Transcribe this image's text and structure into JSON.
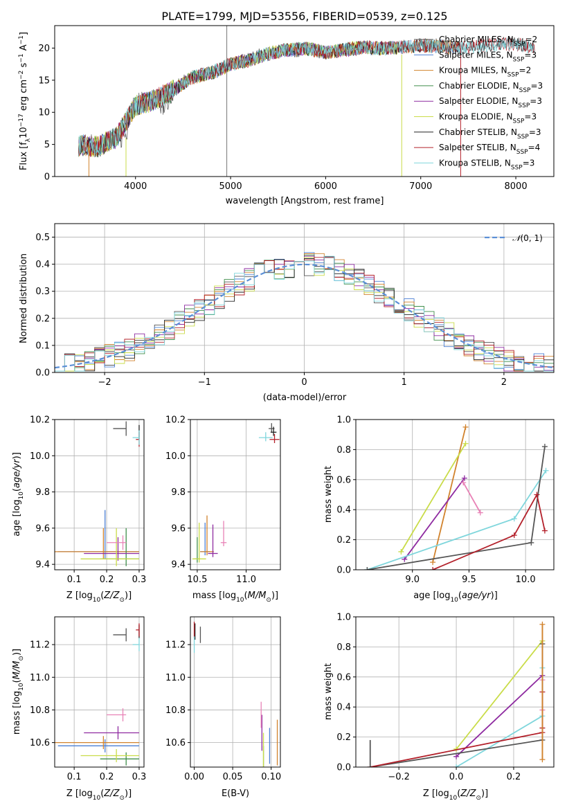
{
  "chart_data": [
    {
      "panel": "spectrum",
      "type": "line",
      "title": "PLATE=1799, MJD=53556, FIBERID=0539, z=0.125",
      "xlabel": "wavelength [Angstrom, rest frame]",
      "ylabel": "Flux [fλ10⁻¹⁷ erg cm⁻² s⁻¹ A⁻¹]",
      "xlim": [
        3150,
        8400
      ],
      "ylim": [
        0,
        23.5
      ],
      "xticks": [
        4000,
        5000,
        6000,
        7000,
        8000
      ],
      "yticks": [
        0,
        5,
        10,
        15,
        20
      ],
      "legend_position": "top-right",
      "series": [
        {
          "name": "Chabrier MILES, N_SSP=2",
          "legend": "Chabrier MILES, N",
          "sub": "SSP",
          "suffix": "=2",
          "color": "#555555",
          "x": [
            3400,
            3500,
            3600,
            3700,
            3800,
            3900,
            4000,
            4100,
            4200,
            4300,
            4400,
            4500,
            4600,
            4700,
            4800,
            4900,
            5000,
            5100,
            5200,
            5300,
            5400,
            5500,
            5600,
            5700,
            5800,
            5900,
            6000,
            6200,
            6400,
            6600,
            6800,
            7000,
            7200,
            7400
          ],
          "y": [
            4.8,
            5.2,
            4.5,
            5.5,
            6.2,
            6.0,
            11.2,
            11.8,
            12.0,
            11.0,
            13.5,
            14.8,
            15.5,
            16.0,
            16.2,
            16.8,
            17.5,
            18.0,
            18.2,
            19.0,
            19.2,
            19.5,
            19.8,
            19.5,
            20.0,
            19.6,
            19.3,
            19.8,
            20.2,
            20.0,
            20.2,
            20.5,
            20.4,
            20.0
          ]
        },
        {
          "name": "Salpeter MILES, N_SSP=3",
          "legend": "Salpeter MILES, N",
          "sub": "SSP",
          "suffix": "=3",
          "color": "#4a7fd4",
          "x": [
            3400,
            3600,
            3800,
            4000,
            4200,
            4400,
            4600,
            4800,
            5000,
            5200,
            5400,
            5600,
            5800,
            6000,
            6200,
            6400,
            6600,
            6800,
            7000,
            7200,
            7400
          ],
          "y": [
            4.9,
            4.6,
            6.1,
            11.0,
            11.9,
            13.4,
            15.4,
            16.1,
            17.4,
            18.1,
            19.1,
            19.7,
            19.9,
            19.3,
            19.7,
            20.1,
            19.9,
            20.1,
            20.4,
            20.3,
            20.0
          ]
        },
        {
          "name": "Kroupa MILES, N_SSP=2",
          "legend": "Kroupa MILES, N",
          "sub": "SSP",
          "suffix": "=2",
          "color": "#d1822c",
          "x": [
            3400,
            3600,
            3800,
            4000,
            4200,
            4400,
            4600,
            4800,
            5000,
            5200,
            5400,
            5600,
            5800,
            6000,
            6200,
            6400,
            6600,
            6800,
            7000,
            7200,
            7400
          ],
          "y": [
            4.8,
            4.6,
            6.0,
            11.0,
            11.8,
            13.5,
            15.4,
            16.1,
            17.5,
            18.1,
            19.1,
            19.7,
            19.9,
            19.3,
            19.7,
            20.1,
            19.9,
            20.1,
            20.4,
            20.3,
            20.0
          ]
        },
        {
          "name": "Chabrier ELODIE, N_SSP=3",
          "legend": "Chabrier ELODIE, N",
          "sub": "SSP",
          "suffix": "=3",
          "color": "#3f8e4a",
          "x": [
            3400,
            3600,
            3800,
            4000,
            4200,
            4400,
            4600,
            4800,
            5000,
            5200,
            5400,
            5600,
            5800,
            6000,
            6200,
            6400,
            6600,
            6800
          ],
          "y": [
            4.9,
            4.6,
            6.1,
            11.1,
            11.9,
            13.4,
            15.5,
            16.2,
            17.5,
            18.1,
            19.1,
            19.8,
            19.9,
            19.3,
            19.8,
            20.1,
            20.0,
            20.1
          ]
        },
        {
          "name": "Salpeter ELODIE, N_SSP=3",
          "legend": "Salpeter ELODIE, N",
          "sub": "SSP",
          "suffix": "=3",
          "color": "#8e2aa0",
          "x": [
            3400,
            3600,
            3800,
            4000,
            4200,
            4400,
            4600,
            4800,
            5000,
            5200,
            5400,
            5600,
            5800,
            6000,
            6200,
            6400,
            6600,
            6800
          ],
          "y": [
            4.9,
            4.6,
            6.1,
            11.0,
            11.9,
            13.5,
            15.4,
            16.1,
            17.5,
            18.2,
            19.1,
            19.7,
            19.9,
            19.4,
            19.7,
            20.1,
            20.0,
            20.1
          ]
        },
        {
          "name": "Kroupa ELODIE, N_SSP=3",
          "legend": "Kroupa ELODIE, N",
          "sub": "SSP",
          "suffix": "=3",
          "color": "#c9dc48",
          "x": [
            3400,
            3600,
            3800,
            4000,
            4200,
            4400,
            4600,
            4800,
            5000,
            5200,
            5400,
            5600,
            5800,
            6000,
            6200,
            6400,
            6600,
            6800
          ],
          "y": [
            4.8,
            4.7,
            6.2,
            11.1,
            11.8,
            13.5,
            15.5,
            16.1,
            17.4,
            18.1,
            19.2,
            19.7,
            19.9,
            19.3,
            19.8,
            20.2,
            19.9,
            20.2
          ]
        },
        {
          "name": "Chabrier STELIB, N_SSP=3",
          "legend": "Chabrier STELIB, N",
          "sub": "SSP",
          "suffix": "=3",
          "color": "#222222",
          "x": [
            3400,
            3600,
            3800,
            4000,
            4200,
            4400,
            4600,
            4800,
            5000,
            5200,
            5400,
            5600,
            5800,
            6000,
            6200,
            6400,
            6600,
            6800,
            7000,
            7200,
            7400,
            7600,
            7800,
            8000,
            8200
          ],
          "y": [
            4.9,
            4.6,
            6.1,
            11.1,
            11.9,
            13.4,
            15.4,
            16.1,
            17.5,
            18.1,
            19.1,
            19.8,
            19.9,
            19.3,
            19.8,
            20.1,
            20.0,
            20.1,
            20.4,
            20.3,
            20.0,
            20.3,
            20.6,
            20.6,
            20.1
          ]
        },
        {
          "name": "Salpeter STELIB, N_SSP=4",
          "legend": "Salpeter STELIB, N",
          "sub": "SSP",
          "suffix": "=4",
          "color": "#b3202a",
          "x": [
            3400,
            3600,
            3800,
            4000,
            4200,
            4400,
            4600,
            4800,
            5000,
            5200,
            5400,
            5600,
            5800,
            6000,
            6200,
            6400,
            6600,
            6800,
            7000,
            7200,
            7400,
            7600,
            7800,
            8000,
            8200
          ],
          "y": [
            4.9,
            4.6,
            6.1,
            11.0,
            11.9,
            13.5,
            15.5,
            16.1,
            17.5,
            18.1,
            19.1,
            19.7,
            19.9,
            19.3,
            19.7,
            20.1,
            20.0,
            20.1,
            20.4,
            20.3,
            20.0,
            20.3,
            20.6,
            20.6,
            20.1
          ]
        },
        {
          "name": "Kroupa STELIB, N_SSP=3",
          "legend": "Kroupa STELIB, N",
          "sub": "SSP",
          "suffix": "=3",
          "color": "#7fd6dc",
          "x": [
            3400,
            3600,
            3800,
            4000,
            4200,
            4400,
            4600,
            4800,
            5000,
            5200,
            5400,
            5600,
            5800,
            6000,
            6200,
            6400,
            6600,
            6800,
            7000,
            7200,
            7400,
            7600,
            7800,
            8000,
            8200
          ],
          "y": [
            4.8,
            4.7,
            6.2,
            11.1,
            11.9,
            13.4,
            15.4,
            16.2,
            17.5,
            18.1,
            19.2,
            19.8,
            19.9,
            19.3,
            19.7,
            20.1,
            19.9,
            20.1,
            20.4,
            20.2,
            20.0,
            20.3,
            20.6,
            20.5,
            20.1
          ]
        }
      ]
    },
    {
      "panel": "residuals",
      "type": "line",
      "xlabel": "(data-model)/error",
      "ylabel": "Normed distribution",
      "xlim": [
        -2.5,
        2.5
      ],
      "ylim": [
        0,
        0.55
      ],
      "xticks": [
        -2,
        -1,
        0,
        1,
        2
      ],
      "yticks": [
        0.0,
        0.1,
        0.2,
        0.3,
        0.4,
        0.5
      ],
      "legend": "𝒩(0, 1)",
      "reference": {
        "name": "N(0,1)",
        "color": "#5b8fd6",
        "mean": 0,
        "sigma": 1
      }
    },
    {
      "panel": "age-Z",
      "type": "scatter",
      "xlabel": "Z [log10(Z/Z⊙)]",
      "ylabel": "age [log10(age/yr)]",
      "xlim": [
        0.04,
        0.315
      ],
      "ylim": [
        9.37,
        10.2
      ],
      "xticks": [
        0.1,
        0.2,
        0.3
      ],
      "yticks": [
        9.4,
        9.6,
        9.8,
        10.0,
        10.2
      ]
    },
    {
      "panel": "age-mass",
      "type": "scatter",
      "xlabel": "mass [log10(M/M⊙)]",
      "xlim": [
        10.43,
        11.35
      ],
      "ylim": [
        9.37,
        10.2
      ],
      "xticks": [
        10.5,
        11.0
      ],
      "yticks": [
        9.4,
        9.6,
        9.8,
        10.0,
        10.2
      ]
    },
    {
      "panel": "weight-age",
      "type": "line",
      "xlabel": "age [log10(age/yr)]",
      "ylabel": "mass weight",
      "xlim": [
        8.5,
        10.25
      ],
      "ylim": [
        0,
        1.0
      ],
      "xticks": [
        9.0,
        9.5,
        10.0
      ],
      "yticks": [
        0.0,
        0.2,
        0.4,
        0.6,
        0.8,
        1.0
      ]
    },
    {
      "panel": "mass-Z",
      "type": "scatter",
      "xlabel": "Z [log10(Z/Z⊙)]",
      "ylabel": "mass [log10(M/M⊙)]",
      "xlim": [
        0.04,
        0.315
      ],
      "ylim": [
        10.45,
        11.37
      ],
      "xticks": [
        0.1,
        0.2,
        0.3
      ],
      "yticks": [
        10.6,
        10.8,
        11.0,
        11.2
      ]
    },
    {
      "panel": "mass-ebv",
      "type": "scatter",
      "xlabel": "E(B-V)",
      "xlim": [
        -0.005,
        0.112
      ],
      "ylim": [
        10.45,
        11.37
      ],
      "xticks": [
        0.0,
        0.05,
        0.1
      ],
      "yticks": [
        10.6,
        10.8,
        11.0,
        11.2
      ]
    },
    {
      "panel": "weight-Z",
      "type": "line",
      "xlabel": "Z [log10(Z/Z⊙)]",
      "ylabel": "mass weight",
      "xlim": [
        -0.35,
        0.34
      ],
      "ylim": [
        0,
        1.0
      ],
      "xticks": [
        -0.2,
        0.0,
        0.2
      ],
      "yticks": [
        0.0,
        0.2,
        0.4,
        0.6,
        0.8,
        1.0
      ]
    }
  ],
  "sps_points": [
    {
      "model": "Chabrier MILES",
      "color": "#555555",
      "Z": [
        0.22,
        0.26
      ],
      "age": [
        10.15,
        10.15
      ],
      "mass": [
        11.26,
        11.26
      ],
      "ebv": 0.008
    },
    {
      "model": "Salpeter MILES",
      "color": "#4a7fd4",
      "Z": [
        0.05,
        0.3
      ],
      "age": [
        9.47,
        9.7
      ],
      "mass": [
        10.58,
        10.58
      ],
      "ebv": 0.098
    },
    {
      "model": "Kroupa MILES",
      "color": "#d1822c",
      "Z": [
        0.04,
        0.3
      ],
      "age": [
        9.47,
        9.6
      ],
      "mass": [
        10.6,
        10.6
      ],
      "ebv": 0.108
    },
    {
      "model": "Chabrier ELODIE",
      "color": "#3f8e4a",
      "Z": [
        0.18,
        0.3
      ],
      "age": [
        9.43,
        9.6
      ],
      "mass": [
        10.5,
        10.5
      ],
      "ebv": 0.09
    },
    {
      "model": "Salpeter ELODIE",
      "color": "#8e2aa0",
      "Z": [
        0.13,
        0.3
      ],
      "age": [
        9.46,
        9.55
      ],
      "mass": [
        10.66,
        10.66
      ],
      "ebv": 0.088
    },
    {
      "model": "Kroupa ELODIE",
      "color": "#c9dc48",
      "Z": [
        0.12,
        0.3
      ],
      "age": [
        9.43,
        9.6
      ],
      "mass": [
        10.52,
        10.52
      ],
      "ebv": 0.09
    },
    {
      "model": "Chabrier STELIB",
      "color": "#222222",
      "Z": [
        0.3,
        0.3
      ],
      "age": [
        10.13,
        10.13
      ],
      "mass": [
        11.28,
        11.28
      ],
      "ebv": 0.001
    },
    {
      "model": "Salpeter STELIB",
      "color": "#b3202a",
      "Z": [
        0.29,
        0.3
      ],
      "age": [
        10.09,
        10.09
      ],
      "mass": [
        11.29,
        11.29
      ],
      "ebv": 0.0
    },
    {
      "model": "Kroupa STELIB",
      "color": "#7fd6dc",
      "Z": [
        0.28,
        0.3
      ],
      "age": [
        10.1,
        10.1
      ],
      "mass": [
        11.2,
        11.2
      ],
      "ebv": 0.0
    },
    {
      "model": "pink",
      "color": "#e882b6",
      "Z": [
        0.2,
        0.26
      ],
      "age": [
        9.52,
        9.52
      ],
      "mass": [
        10.77,
        10.77
      ],
      "ebv": 0.087
    }
  ],
  "weight_lines": [
    {
      "color": "#d1822c",
      "age": [
        9.18,
        9.47
      ],
      "Z": [
        0.3,
        0.3
      ],
      "w": [
        0.05,
        0.95
      ]
    },
    {
      "color": "#c9dc48",
      "age": [
        8.9,
        9.47
      ],
      "Z": [
        0.0,
        0.3
      ],
      "w": [
        0.12,
        0.84
      ]
    },
    {
      "color": "#8e2aa0",
      "age": [
        8.93,
        9.46
      ],
      "Z": [
        0.0,
        0.3
      ],
      "w": [
        0.07,
        0.61
      ]
    },
    {
      "color": "#e882b6",
      "age": [
        9.45,
        9.6
      ],
      "Z": [
        0.3,
        0.3
      ],
      "w": [
        0.58,
        0.38
      ]
    },
    {
      "color": "#7fd6dc",
      "age": [
        8.6,
        9.9,
        10.18
      ],
      "Z": [
        0.0,
        0.3,
        0.3
      ],
      "w": [
        0.0,
        0.34,
        0.66
      ]
    },
    {
      "color": "#555555",
      "age": [
        8.6,
        10.05,
        10.17
      ],
      "Z": [
        -0.3,
        0.3,
        0.3
      ],
      "w": [
        0.0,
        0.18,
        0.82
      ]
    },
    {
      "color": "#b3202a",
      "age": [
        9.18,
        9.9,
        10.1,
        10.17
      ],
      "Z": [
        -0.3,
        0.3,
        0.3,
        0.3
      ],
      "w": [
        0.0,
        0.23,
        0.5,
        0.26
      ]
    }
  ]
}
